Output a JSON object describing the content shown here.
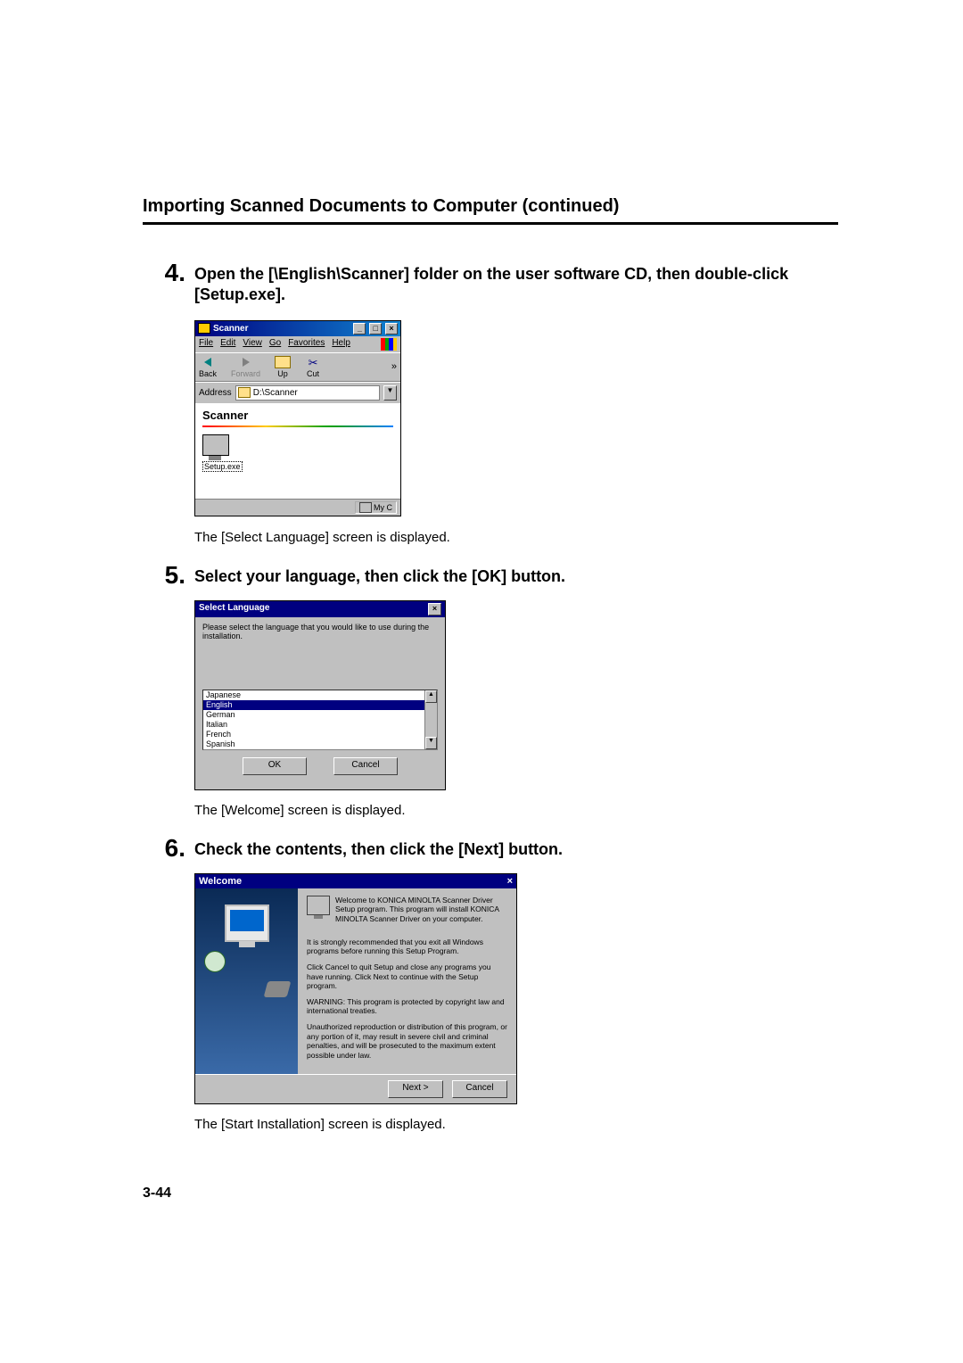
{
  "page": {
    "title": "Importing Scanned Documents to Computer (continued)",
    "number": "3-44"
  },
  "steps": {
    "s4": {
      "num": "4.",
      "text": "Open the [\\English\\Scanner] folder on the user software CD, then double-click [Setup.exe].",
      "caption": "The [Select Language] screen is displayed."
    },
    "s5": {
      "num": "5.",
      "text": "Select your language, then click the [OK] button.",
      "caption": "The [Welcome] screen is displayed."
    },
    "s6": {
      "num": "6.",
      "text": "Check the contents, then click the [Next] button.",
      "caption": "The [Start Installation] screen is displayed."
    }
  },
  "explorer": {
    "title": "Scanner",
    "menu": {
      "file": "File",
      "edit": "Edit",
      "view": "View",
      "go": "Go",
      "fav": "Favorites",
      "help": "Help"
    },
    "toolbar": {
      "back": "Back",
      "forward": "Forward",
      "up": "Up",
      "cut": "Cut"
    },
    "address_label": "Address",
    "address_value": "D:\\Scanner",
    "content_header": "Scanner",
    "file": "Setup.exe",
    "status": "My C"
  },
  "langdlg": {
    "title": "Select Language",
    "prompt": "Please select the language that you would like to use during the installation.",
    "items": [
      "Japanese",
      "English",
      "German",
      "Italian",
      "French",
      "Spanish"
    ],
    "selected_index": 1,
    "ok": "OK",
    "cancel": "Cancel"
  },
  "welcome": {
    "title": "Welcome",
    "p1": "Welcome to KONICA MINOLTA Scanner Driver Setup program. This program will install KONICA MINOLTA Scanner Driver on your computer.",
    "p2": "It is strongly recommended that you exit all Windows programs before running this Setup Program.",
    "p3": "Click Cancel to quit Setup and close any programs you have running. Click Next to continue with the Setup program.",
    "p4": "WARNING: This program is protected by copyright law and international treaties.",
    "p5": "Unauthorized reproduction or distribution of this program, or any portion of it, may result in severe civil and criminal penalties, and will be prosecuted to the maximum extent possible under law.",
    "next": "Next >",
    "cancel": "Cancel"
  },
  "colors": {
    "titlebar": "#000080",
    "win_bg": "#c0c0c0"
  }
}
